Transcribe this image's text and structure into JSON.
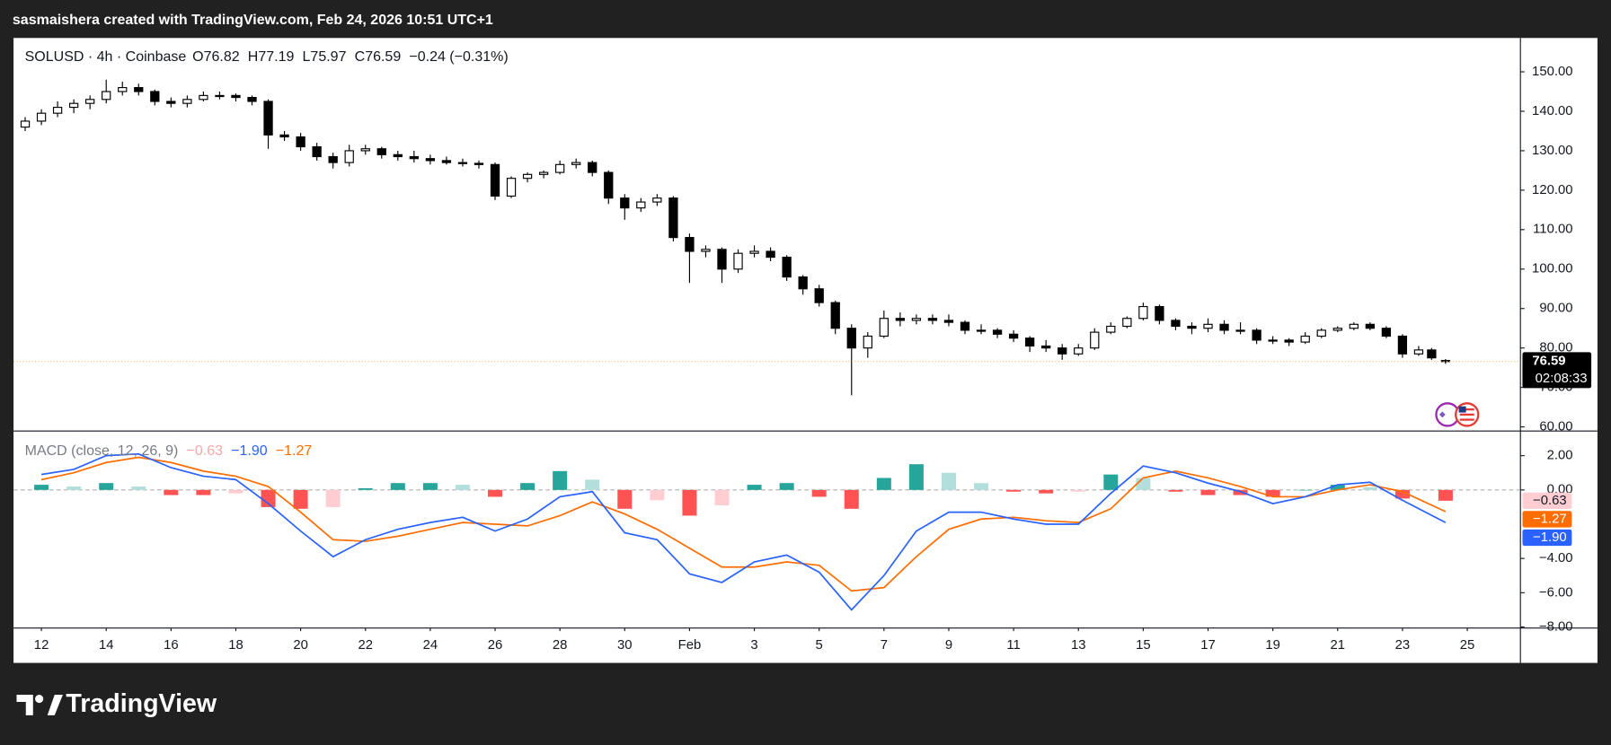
{
  "top_bar": "sasmaishera created with TradingView.com, Feb 24, 2026 10:51 UTC+1",
  "footer": "TradingView",
  "chart_data": [
    {
      "type": "candlestick",
      "symbol": "SOLUSD · 4h · Coinbase",
      "ohlc_labels": [
        "O",
        "H",
        "L",
        "C"
      ],
      "change": "−0.24 (−0.31%)",
      "countdown": "02:08:33",
      "up_color": "#ffffff",
      "down_color": "#000000",
      "wick_color": "#000000",
      "xlim": [
        11.14,
        57.64
      ],
      "ylim": [
        58.96,
        158.58
      ],
      "yticks": [
        {
          "value": 60,
          "label": "60.00"
        },
        {
          "value": 70,
          "label": "70.00"
        },
        {
          "value": 80,
          "label": "80.00"
        },
        {
          "value": 90,
          "label": "90.00"
        },
        {
          "value": 100,
          "label": "100.00"
        },
        {
          "value": 110,
          "label": "110.00"
        },
        {
          "value": 120,
          "label": "120.00"
        },
        {
          "value": 130,
          "label": "130.00"
        },
        {
          "value": 140,
          "label": "140.00"
        },
        {
          "value": 150,
          "label": "150.00"
        }
      ],
      "grid": false,
      "x": [
        11.5,
        12,
        12.5,
        13,
        13.5,
        14,
        14.5,
        15,
        15.5,
        16,
        16.5,
        17,
        17.5,
        18,
        18.5,
        19,
        19.5,
        20,
        20.5,
        21,
        21.5,
        22,
        22.5,
        23,
        23.5,
        24,
        24.5,
        25,
        25.5,
        26,
        26.5,
        27,
        27.5,
        28,
        28.5,
        29,
        29.5,
        30,
        30.5,
        31,
        31.5,
        32,
        32.5,
        33,
        33.5,
        34,
        34.5,
        35,
        35.5,
        36,
        36.5,
        37,
        37.5,
        38,
        38.5,
        39,
        39.5,
        40,
        40.5,
        41,
        41.5,
        42,
        42.5,
        43,
        43.5,
        44,
        44.5,
        45,
        45.5,
        46,
        46.5,
        47,
        47.5,
        48,
        48.5,
        49,
        49.5,
        50,
        50.5,
        51,
        51.5,
        52,
        52.5,
        53,
        53.5,
        54,
        54.5,
        54.9,
        55.33
      ],
      "open": [
        136,
        137.5,
        139.5,
        141,
        142,
        143,
        145,
        146,
        145,
        142.5,
        142,
        143,
        144,
        144,
        143.5,
        142.5,
        134,
        133.5,
        131,
        128.5,
        127,
        130,
        130.5,
        129,
        128.5,
        128,
        127.5,
        127,
        126.8,
        126.5,
        118.5,
        123,
        124,
        124.5,
        126.5,
        127,
        124.5,
        118,
        115.5,
        117,
        118,
        108,
        104.5,
        105,
        100,
        104,
        104.5,
        103,
        98,
        95,
        91.5,
        85,
        80,
        83,
        87.5,
        87,
        87.5,
        87,
        86.5,
        84.5,
        84.5,
        83.5,
        82.5,
        80.5,
        80,
        78.5,
        80,
        84,
        85.5,
        87.5,
        90.5,
        87,
        85.5,
        85,
        86,
        84.5,
        84.5,
        82,
        82,
        81.5,
        83,
        84.5,
        85,
        86,
        85,
        83,
        78.5,
        79.5,
        76.82
      ],
      "high": [
        138.5,
        140.5,
        142.5,
        143,
        144,
        148,
        147.5,
        147,
        145.5,
        143.5,
        144,
        145,
        145,
        144.5,
        144,
        143,
        135,
        134.5,
        132,
        129.5,
        131.5,
        131.5,
        131,
        130,
        130,
        129,
        128.5,
        128,
        127.5,
        127,
        123.5,
        124.5,
        125,
        127.5,
        128,
        127.5,
        125,
        119,
        118,
        119,
        118.5,
        109,
        106,
        105.5,
        105,
        106,
        105.5,
        103.5,
        98.5,
        96,
        92,
        86,
        84,
        89.5,
        89,
        88.5,
        88.5,
        88.5,
        87,
        86,
        85,
        84.5,
        83,
        82,
        81,
        81,
        85,
        86.5,
        88,
        91.5,
        91,
        87.5,
        86.5,
        87.5,
        87,
        86.5,
        85,
        83,
        82.5,
        84,
        85,
        85.5,
        86.5,
        86.5,
        85.5,
        83.5,
        80.5,
        80,
        77.19
      ],
      "low": [
        135,
        136.5,
        138.5,
        139.5,
        140.5,
        142,
        144,
        144,
        141.5,
        141,
        141,
        142.5,
        143,
        142.5,
        141.5,
        130.5,
        132.5,
        130,
        127.5,
        125.5,
        126,
        129,
        128,
        127.5,
        127,
        126.5,
        126.5,
        126,
        125.5,
        117.5,
        118,
        122,
        123,
        124,
        125.5,
        123.5,
        116.5,
        112.5,
        114.5,
        116,
        107,
        96.5,
        103,
        96.5,
        99,
        103,
        102,
        97,
        93.5,
        90.5,
        83.5,
        68,
        77.5,
        82.5,
        85.5,
        86,
        86,
        85.5,
        83.5,
        83.5,
        82.5,
        81.5,
        79,
        79,
        77,
        78,
        79.5,
        83.5,
        85,
        87,
        86,
        84.5,
        83.5,
        84,
        83.5,
        83.5,
        81,
        81,
        80.5,
        81,
        82.5,
        84,
        84.5,
        84.5,
        82.5,
        77.5,
        78,
        77,
        75.97
      ],
      "close": [
        137.5,
        139.5,
        141,
        142,
        143,
        145,
        146,
        145,
        142.5,
        142,
        143,
        144,
        144,
        143.5,
        142.5,
        134,
        133.5,
        131,
        128.5,
        127,
        130,
        130.5,
        129,
        128.5,
        128,
        127.5,
        127,
        126.8,
        126.5,
        118.5,
        123,
        124,
        124.5,
        126.5,
        127,
        124.5,
        118,
        115.5,
        117,
        118,
        108,
        104.5,
        105,
        100,
        104,
        104.5,
        103,
        98,
        95,
        91.5,
        85,
        80,
        83,
        87.5,
        87,
        87.5,
        87,
        86.5,
        84.5,
        84.5,
        83.5,
        82.5,
        80.5,
        80,
        78.5,
        80,
        84,
        85.5,
        87.5,
        90.5,
        87,
        85.5,
        85,
        86,
        84.5,
        84.5,
        82,
        82,
        81.5,
        83,
        84.5,
        85,
        86,
        85,
        83,
        78.5,
        79.5,
        77.5,
        76.59
      ]
    },
    {
      "type": "macd",
      "title": "MACD (close, 12, 26, 9)",
      "xlim": [
        11.14,
        57.64
      ],
      "ylim": [
        -8.06,
        3.44
      ],
      "yticks": [
        {
          "value": 2,
          "label": "2.00"
        },
        {
          "value": 0,
          "label": "0.00"
        },
        {
          "value": -4,
          "label": "−4.00"
        },
        {
          "value": -6,
          "label": "−6.00"
        },
        {
          "value": -8,
          "label": "−8.00"
        }
      ],
      "xticks": [
        12,
        14,
        16,
        18,
        20,
        22,
        24,
        26,
        28,
        30,
        {
          "value": 32,
          "label": "Feb"
        },
        {
          "value": 34,
          "label": "3"
        },
        {
          "value": 36,
          "label": "5"
        },
        {
          "value": 38,
          "label": "7"
        },
        {
          "value": 40,
          "label": "9"
        },
        {
          "value": 42,
          "label": "11"
        },
        {
          "value": 44,
          "label": "13"
        },
        {
          "value": 46,
          "label": "15"
        },
        {
          "value": 48,
          "label": "17"
        },
        {
          "value": 50,
          "label": "19"
        },
        {
          "value": 52,
          "label": "21"
        },
        {
          "value": 54,
          "label": "23"
        },
        {
          "value": 56,
          "label": "25"
        }
      ],
      "x": [
        12,
        13,
        14,
        15,
        16,
        17,
        18,
        19,
        20,
        21,
        22,
        23,
        24,
        25,
        26,
        27,
        28,
        29,
        30,
        31,
        32,
        33,
        34,
        35,
        36,
        37,
        38,
        39,
        40,
        41,
        42,
        43,
        44,
        45,
        46,
        47,
        48,
        49,
        50,
        51,
        52,
        53,
        54,
        55.33
      ],
      "histogram": {
        "colors": {
          "up_rising": "#26a69a",
          "up_falling": "#b2dfdb",
          "down_rising": "#ffcdd2",
          "down_falling": "#ff5252"
        },
        "label_color": "#f7a9a9",
        "values": [
          0.3,
          0.2,
          0.4,
          0.2,
          -0.3,
          -0.3,
          -0.2,
          -1.0,
          -1.1,
          -1.0,
          0.1,
          0.4,
          0.4,
          0.3,
          -0.4,
          0.4,
          1.1,
          0.6,
          -1.1,
          -0.6,
          -1.5,
          -0.9,
          0.3,
          0.4,
          -0.4,
          -1.1,
          0.7,
          1.5,
          1.0,
          0.4,
          -0.1,
          -0.2,
          -0.1,
          0.9,
          0.7,
          -0.1,
          -0.3,
          -0.3,
          -0.4,
          0.0,
          0.3,
          0.15,
          -0.5,
          -0.63
        ],
        "last_label": "−0.63"
      },
      "macd": {
        "color": "#2962ff",
        "values": [
          0.9,
          1.2,
          2.0,
          2.1,
          1.3,
          0.8,
          0.6,
          -0.8,
          -2.4,
          -3.9,
          -2.9,
          -2.3,
          -1.9,
          -1.6,
          -2.4,
          -1.7,
          -0.4,
          -0.1,
          -2.5,
          -2.9,
          -4.9,
          -5.4,
          -4.2,
          -3.8,
          -4.8,
          -7.0,
          -5.0,
          -2.4,
          -1.3,
          -1.3,
          -1.7,
          -2.0,
          -2.0,
          -0.2,
          1.4,
          1.0,
          0.4,
          -0.1,
          -0.8,
          -0.4,
          0.3,
          0.45,
          -0.6,
          -1.9
        ],
        "last_label": "−1.90"
      },
      "signal": {
        "color": "#ff6d00",
        "values": [
          0.6,
          1.0,
          1.6,
          1.9,
          1.6,
          1.1,
          0.8,
          0.2,
          -1.3,
          -2.9,
          -3.0,
          -2.7,
          -2.3,
          -1.9,
          -2.0,
          -2.1,
          -1.5,
          -0.7,
          -1.4,
          -2.3,
          -3.4,
          -4.5,
          -4.5,
          -4.2,
          -4.4,
          -5.9,
          -5.7,
          -3.9,
          -2.3,
          -1.7,
          -1.6,
          -1.8,
          -1.9,
          -1.1,
          0.7,
          1.1,
          0.7,
          0.2,
          -0.4,
          -0.4,
          0.0,
          0.3,
          -0.1,
          -1.27
        ],
        "last_label": "−1.27"
      }
    }
  ]
}
